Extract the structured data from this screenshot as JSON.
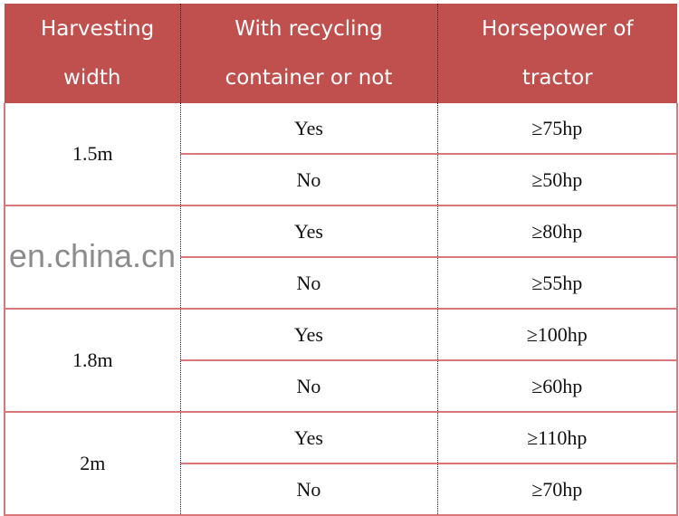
{
  "table": {
    "headers": [
      "Harvesting width",
      "With recycling container or not",
      "Horsepower of tractor"
    ],
    "groups": [
      {
        "width": "1.5m",
        "rows": [
          {
            "recycling": "Yes",
            "hp": "≥75hp"
          },
          {
            "recycling": "No",
            "hp": "≥50hp"
          }
        ]
      },
      {
        "width": "",
        "rows": [
          {
            "recycling": "Yes",
            "hp": "≥80hp"
          },
          {
            "recycling": "No",
            "hp": "≥55hp"
          }
        ]
      },
      {
        "width": "1.8m",
        "rows": [
          {
            "recycling": "Yes",
            "hp": "≥100hp"
          },
          {
            "recycling": "No",
            "hp": "≥60hp"
          }
        ]
      },
      {
        "width": "2m",
        "rows": [
          {
            "recycling": "Yes",
            "hp": "≥110hp"
          },
          {
            "recycling": "No",
            "hp": "≥70hp"
          }
        ]
      }
    ]
  },
  "watermark": "en.china.cn",
  "colors": {
    "header_bg": "#c0504d",
    "border": "#d9777a"
  }
}
